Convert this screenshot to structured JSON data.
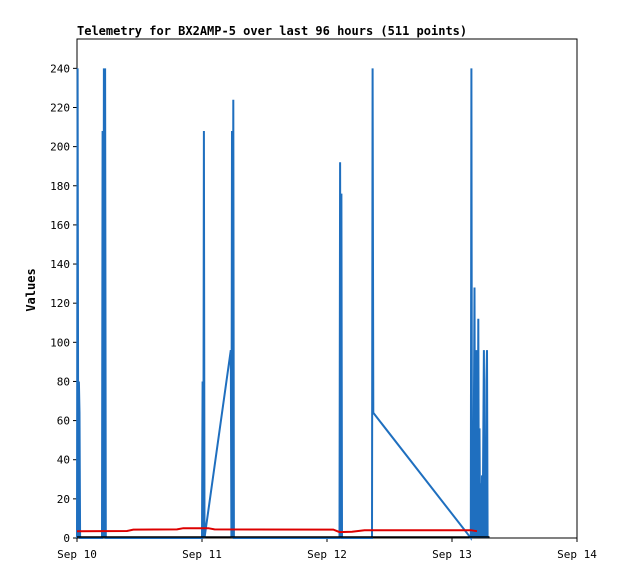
{
  "chart_data": {
    "type": "line",
    "title": "Telemetry for BX2AMP-5 over last 96 hours (511 points)",
    "ylabel": "Values",
    "xlabel": "",
    "xlim": [
      0,
      4
    ],
    "ylim": [
      0,
      255
    ],
    "x_ticks": [
      {
        "value": 0,
        "label": "Sep 10"
      },
      {
        "value": 1,
        "label": "Sep 11"
      },
      {
        "value": 2,
        "label": "Sep 12"
      },
      {
        "value": 3,
        "label": "Sep 13"
      },
      {
        "value": 4,
        "label": "Sep 14"
      }
    ],
    "y_ticks": [
      0,
      20,
      40,
      60,
      80,
      100,
      120,
      140,
      160,
      180,
      200,
      220,
      240
    ],
    "grid": false,
    "series": [
      {
        "color": "#1f6fbf",
        "points": [
          [
            0.0,
            0
          ],
          [
            0.005,
            240
          ],
          [
            0.01,
            0
          ],
          [
            0.015,
            80
          ],
          [
            0.02,
            64
          ],
          [
            0.025,
            0
          ],
          [
            0.2,
            0
          ],
          [
            0.205,
            208
          ],
          [
            0.21,
            0
          ],
          [
            0.215,
            240
          ],
          [
            0.22,
            0
          ],
          [
            0.225,
            240
          ],
          [
            0.23,
            0
          ],
          [
            1.0,
            0
          ],
          [
            1.005,
            80
          ],
          [
            1.01,
            0
          ],
          [
            1.015,
            208
          ],
          [
            1.02,
            0
          ],
          [
            1.23,
            96
          ],
          [
            1.235,
            0
          ],
          [
            1.24,
            208
          ],
          [
            1.245,
            0
          ],
          [
            1.25,
            224
          ],
          [
            1.255,
            0
          ],
          [
            2.1,
            0
          ],
          [
            2.105,
            192
          ],
          [
            2.11,
            0
          ],
          [
            2.115,
            176
          ],
          [
            2.12,
            0
          ],
          [
            2.36,
            0
          ],
          [
            2.365,
            240
          ],
          [
            2.37,
            64
          ],
          [
            3.15,
            0
          ],
          [
            3.155,
            240
          ],
          [
            3.16,
            0
          ],
          [
            3.165,
            54
          ],
          [
            3.17,
            0
          ],
          [
            3.175,
            64
          ],
          [
            3.18,
            128
          ],
          [
            3.185,
            0
          ],
          [
            3.19,
            96
          ],
          [
            3.195,
            0
          ],
          [
            3.2,
            96
          ],
          [
            3.205,
            0
          ],
          [
            3.21,
            112
          ],
          [
            3.215,
            0
          ],
          [
            3.22,
            56
          ],
          [
            3.225,
            0
          ],
          [
            3.23,
            28
          ],
          [
            3.235,
            0
          ],
          [
            3.24,
            32
          ],
          [
            3.245,
            0
          ],
          [
            3.255,
            96
          ],
          [
            3.26,
            0
          ],
          [
            3.265,
            16
          ],
          [
            3.27,
            0
          ],
          [
            3.275,
            80
          ],
          [
            3.28,
            96
          ],
          [
            3.285,
            0
          ]
        ]
      },
      {
        "color": "#dd0000",
        "points": [
          [
            0.0,
            3.5
          ],
          [
            0.4,
            3.6
          ],
          [
            0.45,
            4.3
          ],
          [
            0.8,
            4.4
          ],
          [
            0.85,
            5.0
          ],
          [
            1.05,
            5.0
          ],
          [
            1.1,
            4.4
          ],
          [
            2.05,
            4.3
          ],
          [
            2.1,
            3.0
          ],
          [
            2.2,
            3.2
          ],
          [
            2.3,
            4.0
          ],
          [
            3.15,
            4.0
          ],
          [
            3.2,
            3.5
          ]
        ]
      },
      {
        "color": "#000000",
        "points": [
          [
            0.0,
            0.5
          ],
          [
            3.3,
            0.5
          ]
        ]
      }
    ]
  }
}
